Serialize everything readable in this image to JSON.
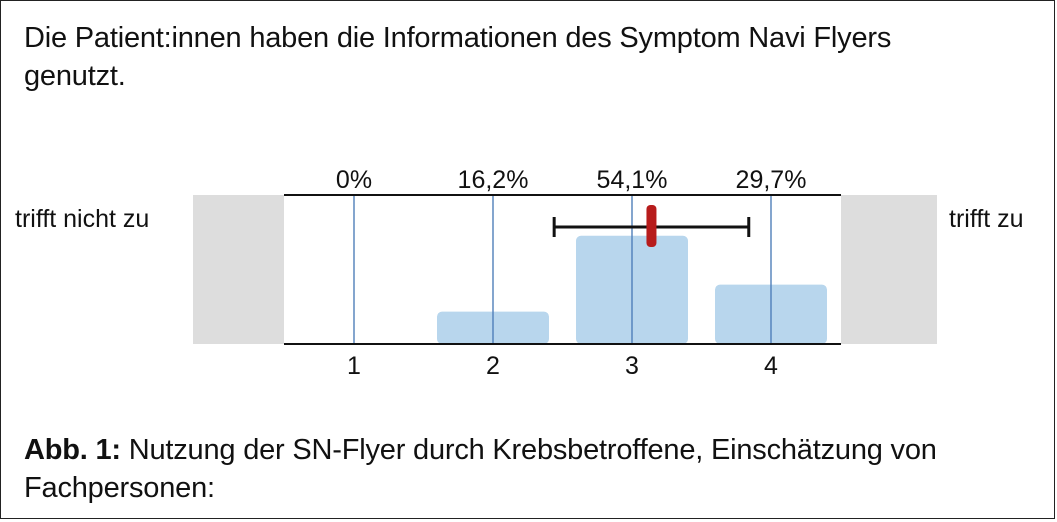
{
  "question": {
    "line1": "Die Patient:innen haben die Informationen des Symptom Navi Flyers",
    "line2": "genutzt."
  },
  "caption": {
    "bold": "Abb. 1:",
    "text1": " Nutzung der SN-Flyer durch Krebsbetroffene, Einschätzung von",
    "text2": "Fachpersonen:"
  },
  "chart_data": {
    "type": "bar",
    "categories": [
      "1",
      "2",
      "3",
      "4"
    ],
    "values": [
      0,
      16.2,
      54.1,
      29.7
    ],
    "value_labels": [
      "0%",
      "16,2%",
      "54,1%",
      "29,7%"
    ],
    "left_anchor": "trifft nicht zu",
    "right_anchor": "trifft zu",
    "mean": 3.14,
    "error_range": [
      2.44,
      3.84
    ],
    "colors": {
      "bar": "#b8d6ed",
      "vline": "#4f7fba",
      "mean": "#b71c1c",
      "errorbar": "#111111",
      "sidebox": "#dddddd"
    }
  }
}
